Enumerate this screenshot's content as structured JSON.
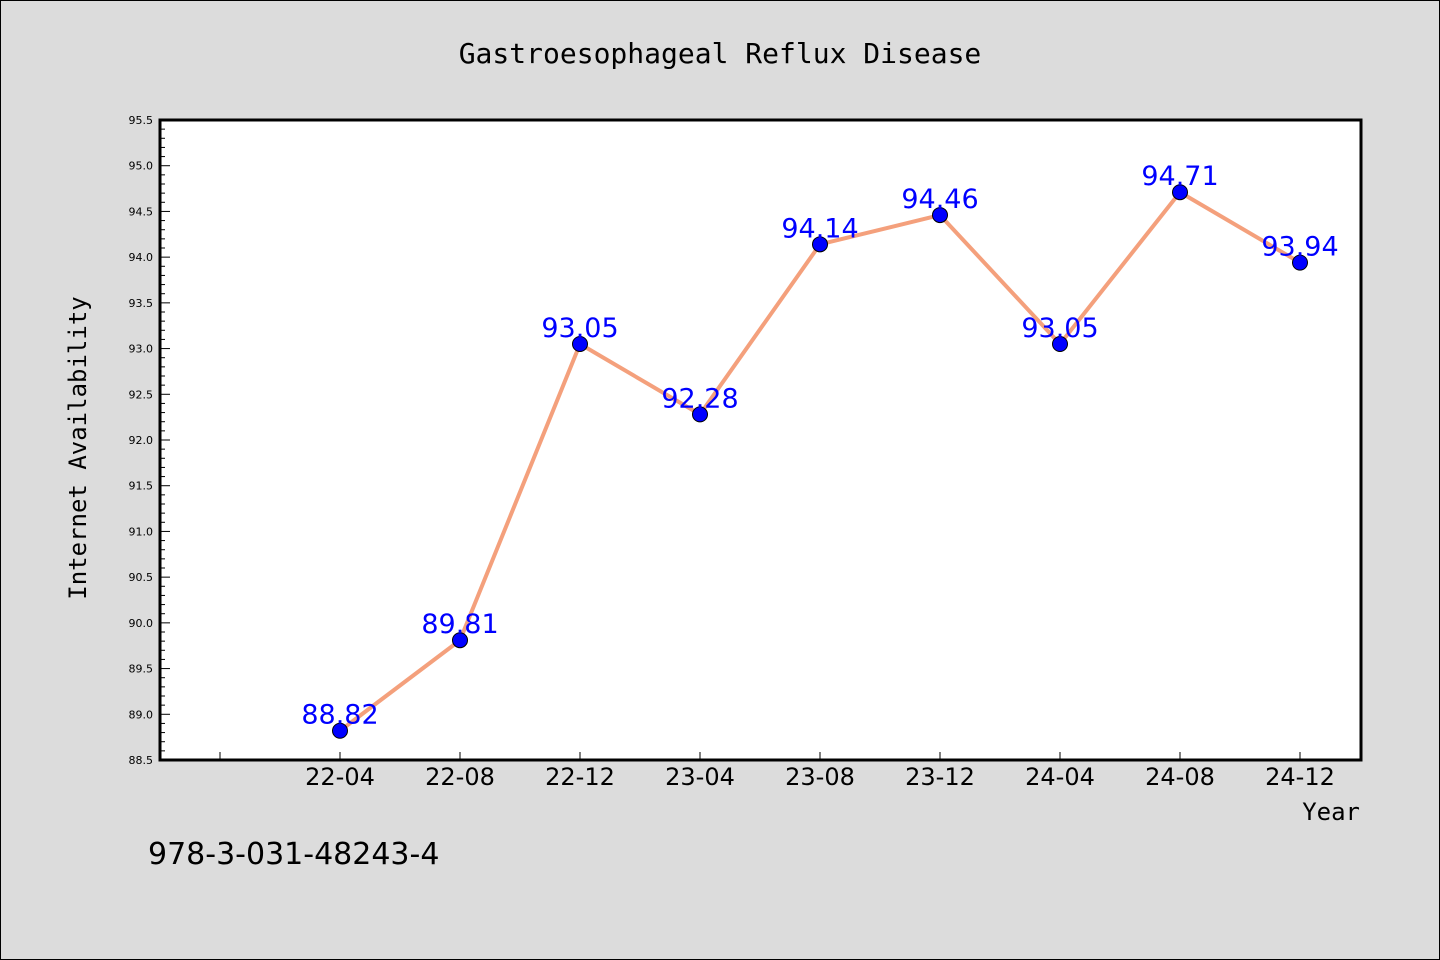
{
  "chart_data": {
    "type": "line",
    "title": "Gastroesophageal Reflux Disease",
    "xlabel": "Year",
    "ylabel": "Internet Availability",
    "categories": [
      "22-04",
      "22-08",
      "22-12",
      "23-04",
      "23-08",
      "23-12",
      "24-04",
      "24-08",
      "24-12"
    ],
    "series": [
      {
        "values": [
          88.82,
          89.81,
          93.05,
          92.28,
          94.14,
          94.46,
          93.05,
          94.71,
          93.94
        ],
        "data_labels": [
          "88.82",
          "89.81",
          "93.05",
          "92.28",
          "94.14",
          "94.46",
          "93.05",
          "94.71",
          "93.94"
        ],
        "line_color": "#f4a07c",
        "marker_color": "#0000ff"
      }
    ],
    "ylim": [
      88.5,
      95.5
    ],
    "yticks": [
      "88.5",
      "89.0",
      "89.5",
      "90.0",
      "90.5",
      "91.0",
      "91.5",
      "92.0",
      "92.5",
      "93.0",
      "93.5",
      "94.0",
      "94.5",
      "95.0",
      "95.5"
    ],
    "grid": false,
    "legend": "none"
  },
  "footer": {
    "isbn": "978-3-031-48243-4"
  }
}
